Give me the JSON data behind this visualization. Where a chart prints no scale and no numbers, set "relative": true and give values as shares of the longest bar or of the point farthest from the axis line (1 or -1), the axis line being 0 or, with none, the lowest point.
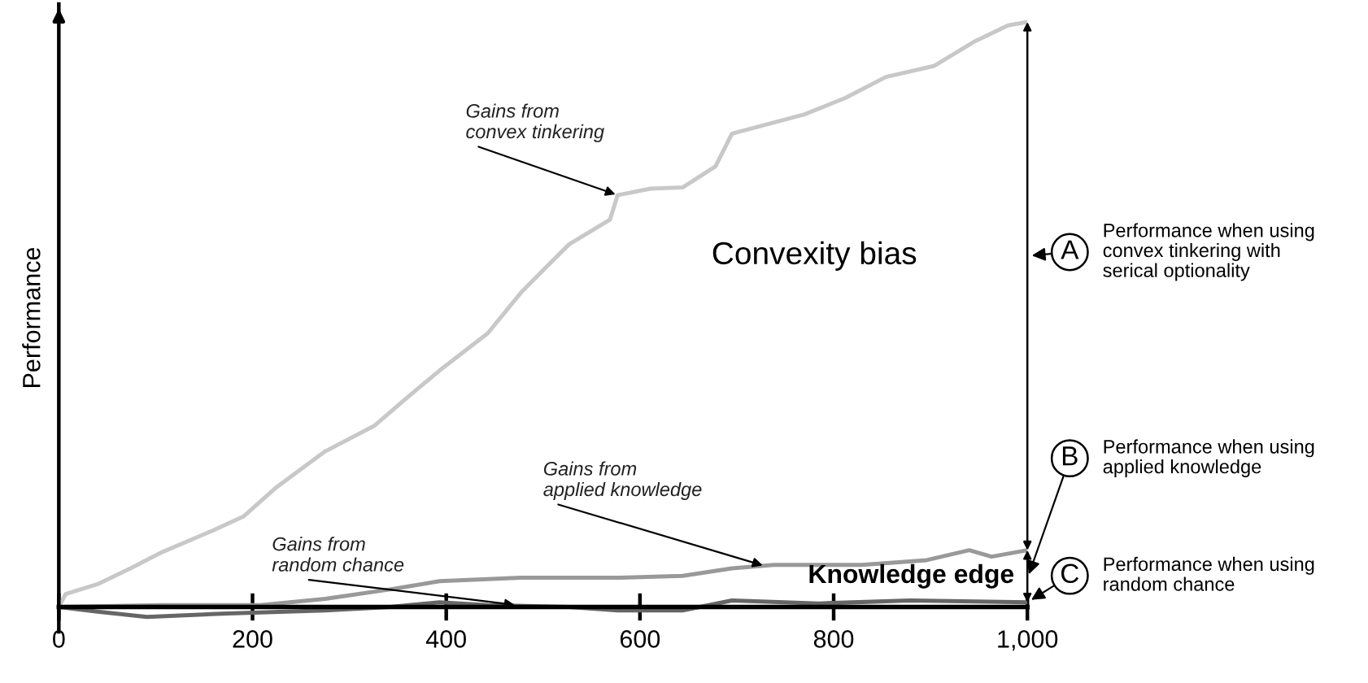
{
  "chart_data": {
    "type": "line",
    "relative": true,
    "ylabel": "Performance",
    "xlim": [
      0,
      1000
    ],
    "xticks": [
      0,
      200,
      400,
      600,
      800,
      {
        "value": 1000,
        "label": "1,000"
      }
    ],
    "series": [
      {
        "color": "#c8c8c8",
        "x": [
          0,
          7,
          40,
          74,
          107,
          158,
          191,
          225,
          275,
          326,
          359,
          393,
          443,
          477,
          502,
          527,
          569,
          577,
          611,
          644,
          678,
          695,
          770,
          812,
          854,
          904,
          946,
          980,
          1000
        ],
        "values": [
          0,
          0.022,
          0.039,
          0.066,
          0.094,
          0.13,
          0.155,
          0.205,
          0.266,
          0.31,
          0.357,
          0.404,
          0.468,
          0.537,
          0.579,
          0.62,
          0.662,
          0.704,
          0.715,
          0.717,
          0.753,
          0.809,
          0.842,
          0.87,
          0.906,
          0.925,
          0.967,
          0.994,
          1.0
        ]
      },
      {
        "color": "#999999",
        "x": [
          0,
          107,
          208,
          275,
          342,
          393,
          477,
          518,
          577,
          644,
          695,
          738,
          829,
          896,
          940,
          963,
          1000
        ],
        "values": [
          0,
          0.003,
          0.003,
          0.014,
          0.03,
          0.044,
          0.05,
          0.05,
          0.05,
          0.053,
          0.066,
          0.072,
          0.072,
          0.08,
          0.097,
          0.086,
          0.097
        ]
      },
      {
        "color": "#666666",
        "x": [
          0,
          40,
          91,
          174,
          275,
          342,
          393,
          443,
          527,
          577,
          644,
          695,
          785,
          879,
          1000
        ],
        "values": [
          0,
          -0.008,
          -0.017,
          -0.011,
          -0.006,
          0,
          0.008,
          0.003,
          0,
          -0.006,
          -0.006,
          0.011,
          0.006,
          0.011,
          0.008
        ]
      }
    ],
    "annotations": [
      {
        "text": "Gains from\nconvex tinkering",
        "x": 577,
        "y": 0.704
      },
      {
        "text": "Gains from\napplied knowledge",
        "x": 729,
        "y": 0.07
      },
      {
        "text": "Gains from\nrandom chance",
        "x": 473,
        "y": 0.003
      },
      "Convexity bias",
      "Knowledge edge",
      "A",
      "Performance when using\nconvex tinkering with\nserical optionality",
      "B",
      "Performance when using\napplied knowledge",
      "C",
      "Performance when using\nrandom chance"
    ]
  }
}
